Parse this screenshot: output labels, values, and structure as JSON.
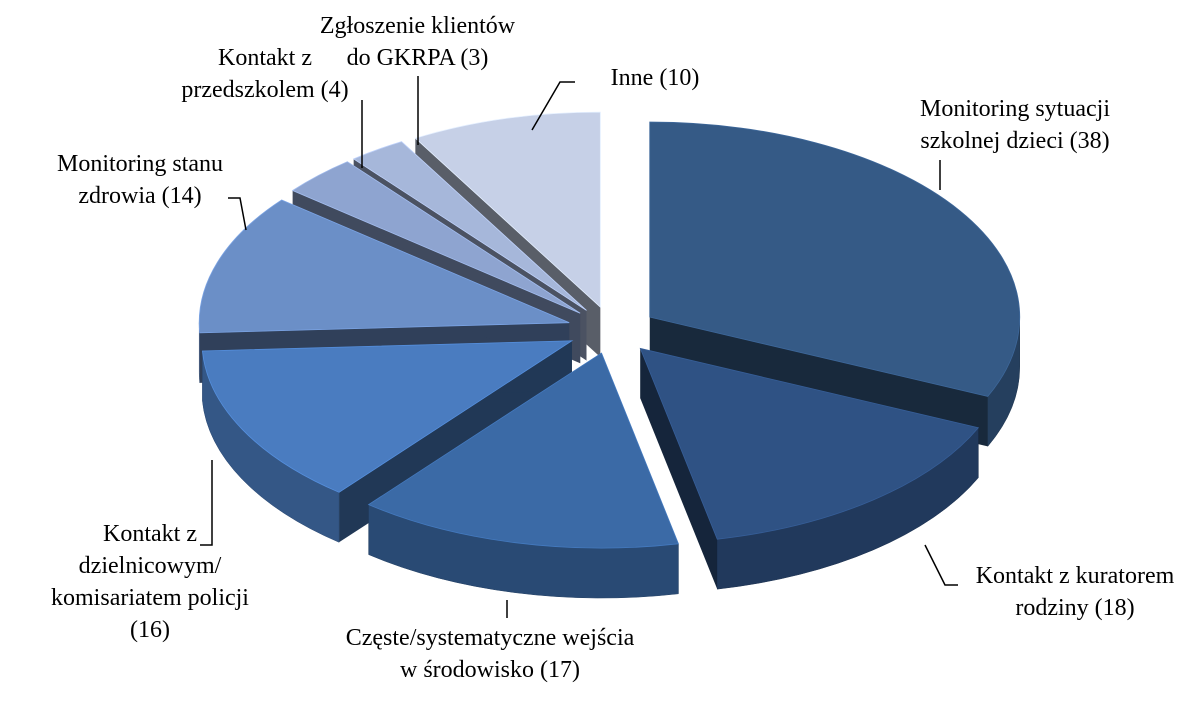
{
  "chart_data": {
    "type": "pie3d",
    "categories": [
      "Monitoring sytuacji szkolnej dzieci",
      "Kontakt z kuratorem rodziny",
      "Częste/systematyczne wejścia w środowisko",
      "Kontakt z dzielnicowym/ komisariatem policji",
      "Monitoring stanu zdrowia",
      "Kontakt z przedszkolem",
      "Zgłoszenie klientów do GKRPA",
      "Inne"
    ],
    "values": [
      38,
      18,
      17,
      16,
      14,
      4,
      3,
      10
    ],
    "value_labels": [
      "(38)",
      "(18)",
      "(17)",
      "(16)",
      "(14)",
      "(4)",
      "(3)",
      "(10)"
    ],
    "colors": [
      "#355a86",
      "#2f5284",
      "#3b6aa6",
      "#4a7cc0",
      "#6b8fc7",
      "#8ea4d0",
      "#a6b7da",
      "#c6d0e7"
    ]
  }
}
